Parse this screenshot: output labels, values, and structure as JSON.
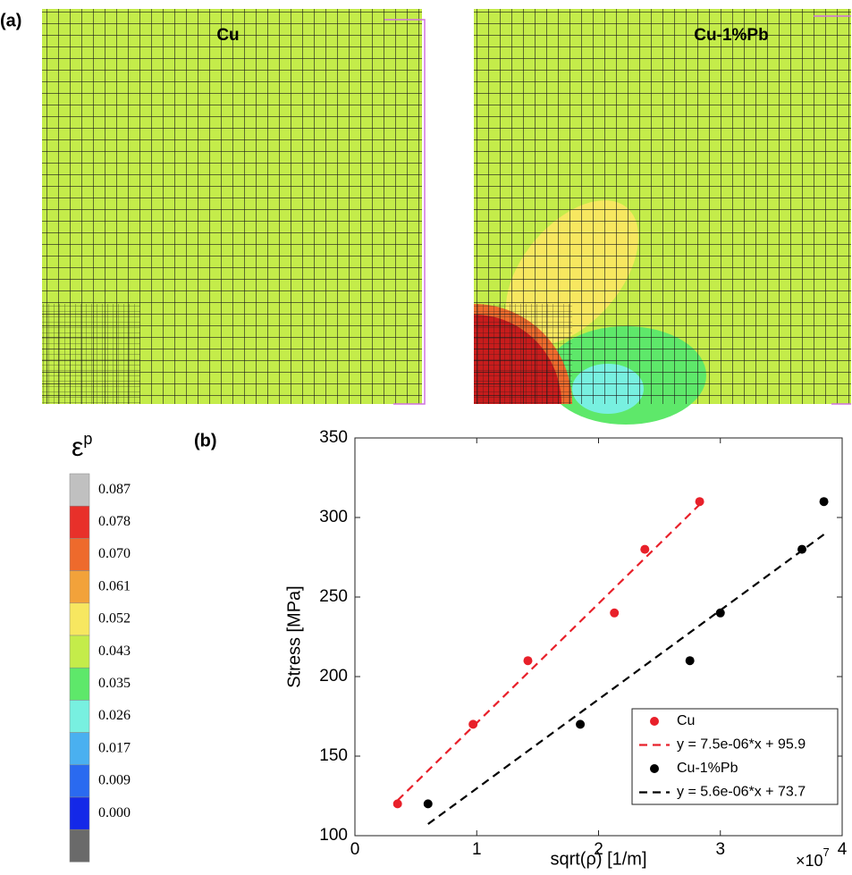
{
  "panel_a": {
    "label": "(a)",
    "titles": [
      "Cu",
      "Cu-1%Pb"
    ],
    "colorbar": {
      "symbol": "ε",
      "superscript": "p",
      "colors": [
        "#c0c0c0",
        "#e8302a",
        "#ee6a2c",
        "#f2a23a",
        "#f7e760",
        "#c4ec4a",
        "#5ee86a",
        "#78f0e0",
        "#4ab0f0",
        "#2a6af0",
        "#1428e8",
        "#6a6a6a"
      ],
      "ticks": [
        {
          "value": 0.087,
          "label": "0.087"
        },
        {
          "value": 0.078,
          "label": "0.078"
        },
        {
          "value": 0.07,
          "label": "0.070"
        },
        {
          "value": 0.061,
          "label": "0.061"
        },
        {
          "value": 0.052,
          "label": "0.052"
        },
        {
          "value": 0.043,
          "label": "0.043"
        },
        {
          "value": 0.035,
          "label": "0.035"
        },
        {
          "value": 0.026,
          "label": "0.026"
        },
        {
          "value": 0.017,
          "label": "0.017"
        },
        {
          "value": 0.009,
          "label": "0.009"
        },
        {
          "value": 0.0,
          "label": "0.000"
        }
      ]
    }
  },
  "chart_data": {
    "type": "scatter",
    "panel_label": "(b)",
    "x_label": "sqrt(ρ) [1/m]",
    "y_label": "Stress [MPa]",
    "x_multiplier": "×10",
    "x_multiplier_exp": "7",
    "xlim": [
      0,
      4
    ],
    "ylim": [
      100,
      350
    ],
    "xticks": [
      0,
      1,
      2,
      3,
      4
    ],
    "yticks": [
      100,
      150,
      200,
      250,
      300,
      350
    ],
    "legend": "lower right",
    "series": [
      {
        "name": "Cu",
        "color": "#e8202a",
        "style": "marker",
        "x": [
          0.35,
          0.97,
          1.42,
          2.13,
          2.38,
          2.83
        ],
        "values": [
          120,
          170,
          210,
          240,
          280,
          310
        ]
      },
      {
        "name": "y = 7.5e-06*x + 95.9",
        "color": "#e8202a",
        "style": "dashed",
        "x": [
          0.35,
          2.83
        ],
        "values": [
          122.15,
          308.15
        ]
      },
      {
        "name": "Cu-1%Pb",
        "color": "#000000",
        "style": "marker",
        "x": [
          0.6,
          1.85,
          2.75,
          3.0,
          3.67,
          3.85
        ],
        "values": [
          120,
          170,
          210,
          240,
          280,
          310
        ]
      },
      {
        "name": "y = 5.6e-06*x + 73.7",
        "color": "#000000",
        "style": "dashed",
        "x": [
          0.6,
          3.85
        ],
        "values": [
          107.3,
          289.3
        ]
      }
    ]
  }
}
